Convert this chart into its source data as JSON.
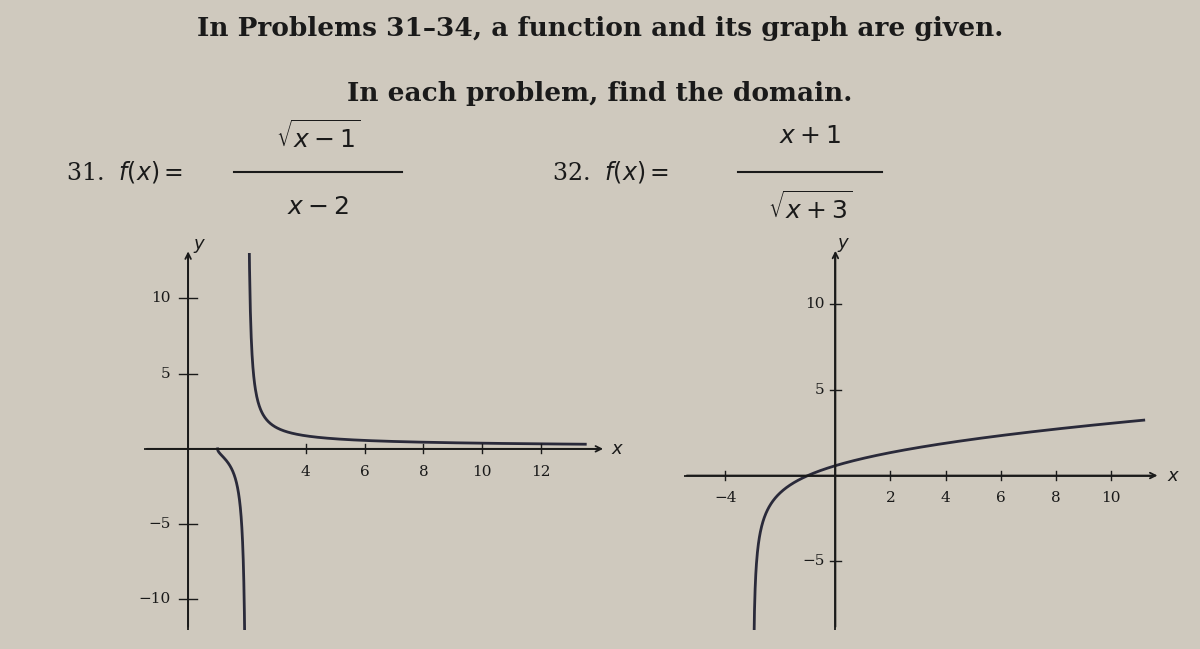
{
  "background_color": "#cfc9be",
  "title_line1": "In Problems 31–34, a function and its graph are given.",
  "title_line2": "In each problem, find the domain.",
  "title_fontsize": 19,
  "formula_fontsize": 17,
  "graph1_xlim": [
    -1.5,
    14
  ],
  "graph1_ylim": [
    -12,
    13
  ],
  "graph1_xticks": [
    4,
    6,
    8,
    10,
    12
  ],
  "graph1_yticks": [
    -10,
    -5,
    5,
    10
  ],
  "graph2_xlim": [
    -5.5,
    11.5
  ],
  "graph2_ylim": [
    -9,
    13
  ],
  "graph2_xticks": [
    -4,
    2,
    4,
    6,
    8,
    10
  ],
  "graph2_yticks": [
    -5,
    5,
    10
  ],
  "curve_color": "#2a2a3a",
  "axis_color": "#1a1a1a",
  "text_color": "#1a1a1a",
  "label_fontsize": 13,
  "tick_fontsize": 11
}
